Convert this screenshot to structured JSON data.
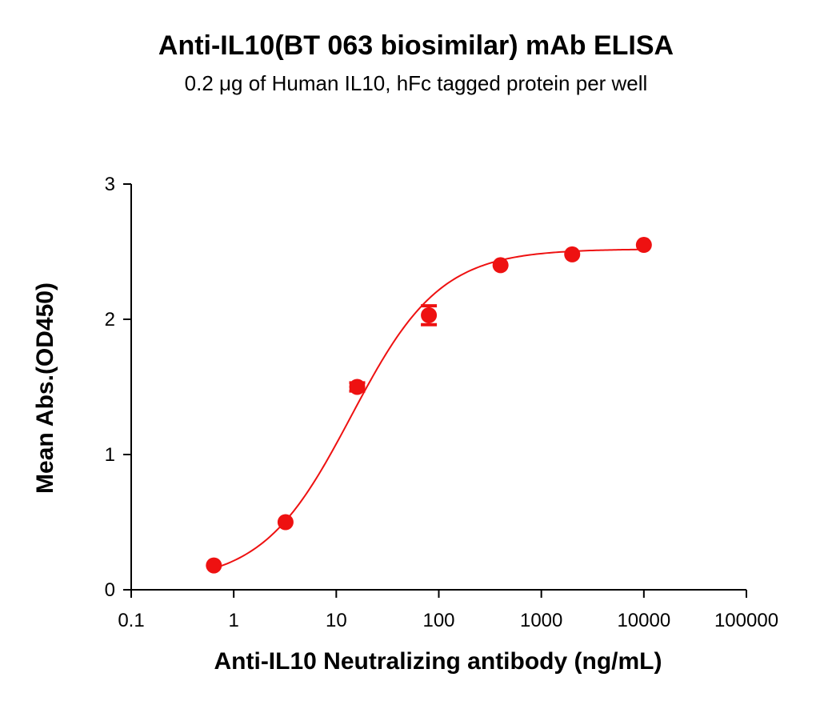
{
  "chart_data": {
    "type": "scatter",
    "title": "Anti-IL10(BT 063 biosimilar) mAb ELISA",
    "subtitle": "0.2 μg of Human IL10, hFc tagged protein per well",
    "xlabel": "Anti-IL10 Neutralizing antibody (ng/mL)",
    "ylabel": "Mean Abs.(OD450)",
    "x_scale": "log",
    "xlim": [
      0.1,
      100000
    ],
    "ylim": [
      0,
      3
    ],
    "x_ticks": [
      0.1,
      1,
      10,
      100,
      1000,
      10000,
      100000
    ],
    "x_tick_labels": [
      "0.1",
      "1",
      "10",
      "100",
      "1000",
      "10000",
      "100000"
    ],
    "y_ticks": [
      0,
      1,
      2,
      3
    ],
    "y_tick_labels": [
      "0",
      "1",
      "2",
      "3"
    ],
    "grid": false,
    "color": "#ee1111",
    "series": [
      {
        "x": [
          0.64,
          3.2,
          16,
          80,
          400,
          2000,
          10000
        ],
        "values": [
          0.18,
          0.5,
          1.5,
          2.03,
          2.4,
          2.48,
          2.55
        ],
        "error": [
          0.0,
          0.0,
          0.03,
          0.07,
          0.0,
          0.0,
          0.0
        ]
      }
    ],
    "fit_curve": {
      "model": "4PL",
      "bottom": 0.05,
      "top": 2.52,
      "ec50": 14,
      "hill": 1.0
    }
  }
}
